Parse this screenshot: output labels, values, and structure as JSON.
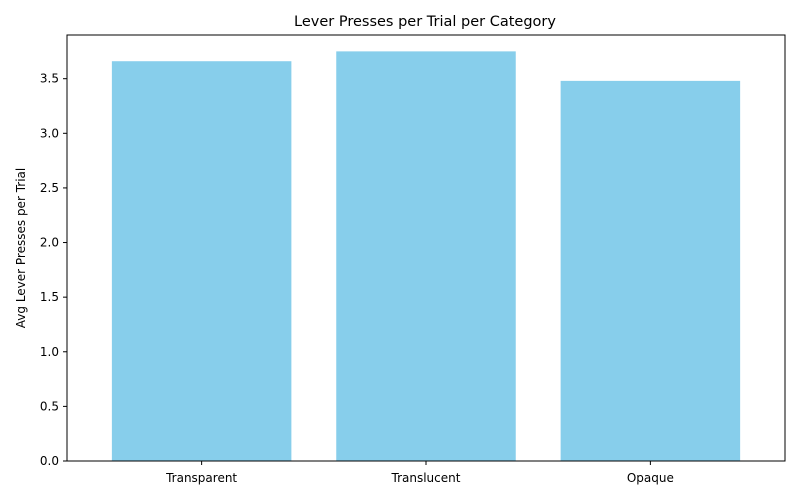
{
  "chart_data": {
    "type": "bar",
    "title": "Lever Presses per Trial per Category",
    "xlabel": "",
    "ylabel": "Avg Lever Presses per Trial",
    "categories": [
      "Transparent",
      "Translucent",
      "Opaque"
    ],
    "values": [
      3.66,
      3.75,
      3.48
    ],
    "ylim": [
      0,
      3.9
    ],
    "yticks": [
      "0.0",
      "0.5",
      "1.0",
      "1.5",
      "2.0",
      "2.5",
      "3.0",
      "3.5"
    ],
    "bar_color": "#87CEEB",
    "grid": false,
    "legend": "none"
  }
}
